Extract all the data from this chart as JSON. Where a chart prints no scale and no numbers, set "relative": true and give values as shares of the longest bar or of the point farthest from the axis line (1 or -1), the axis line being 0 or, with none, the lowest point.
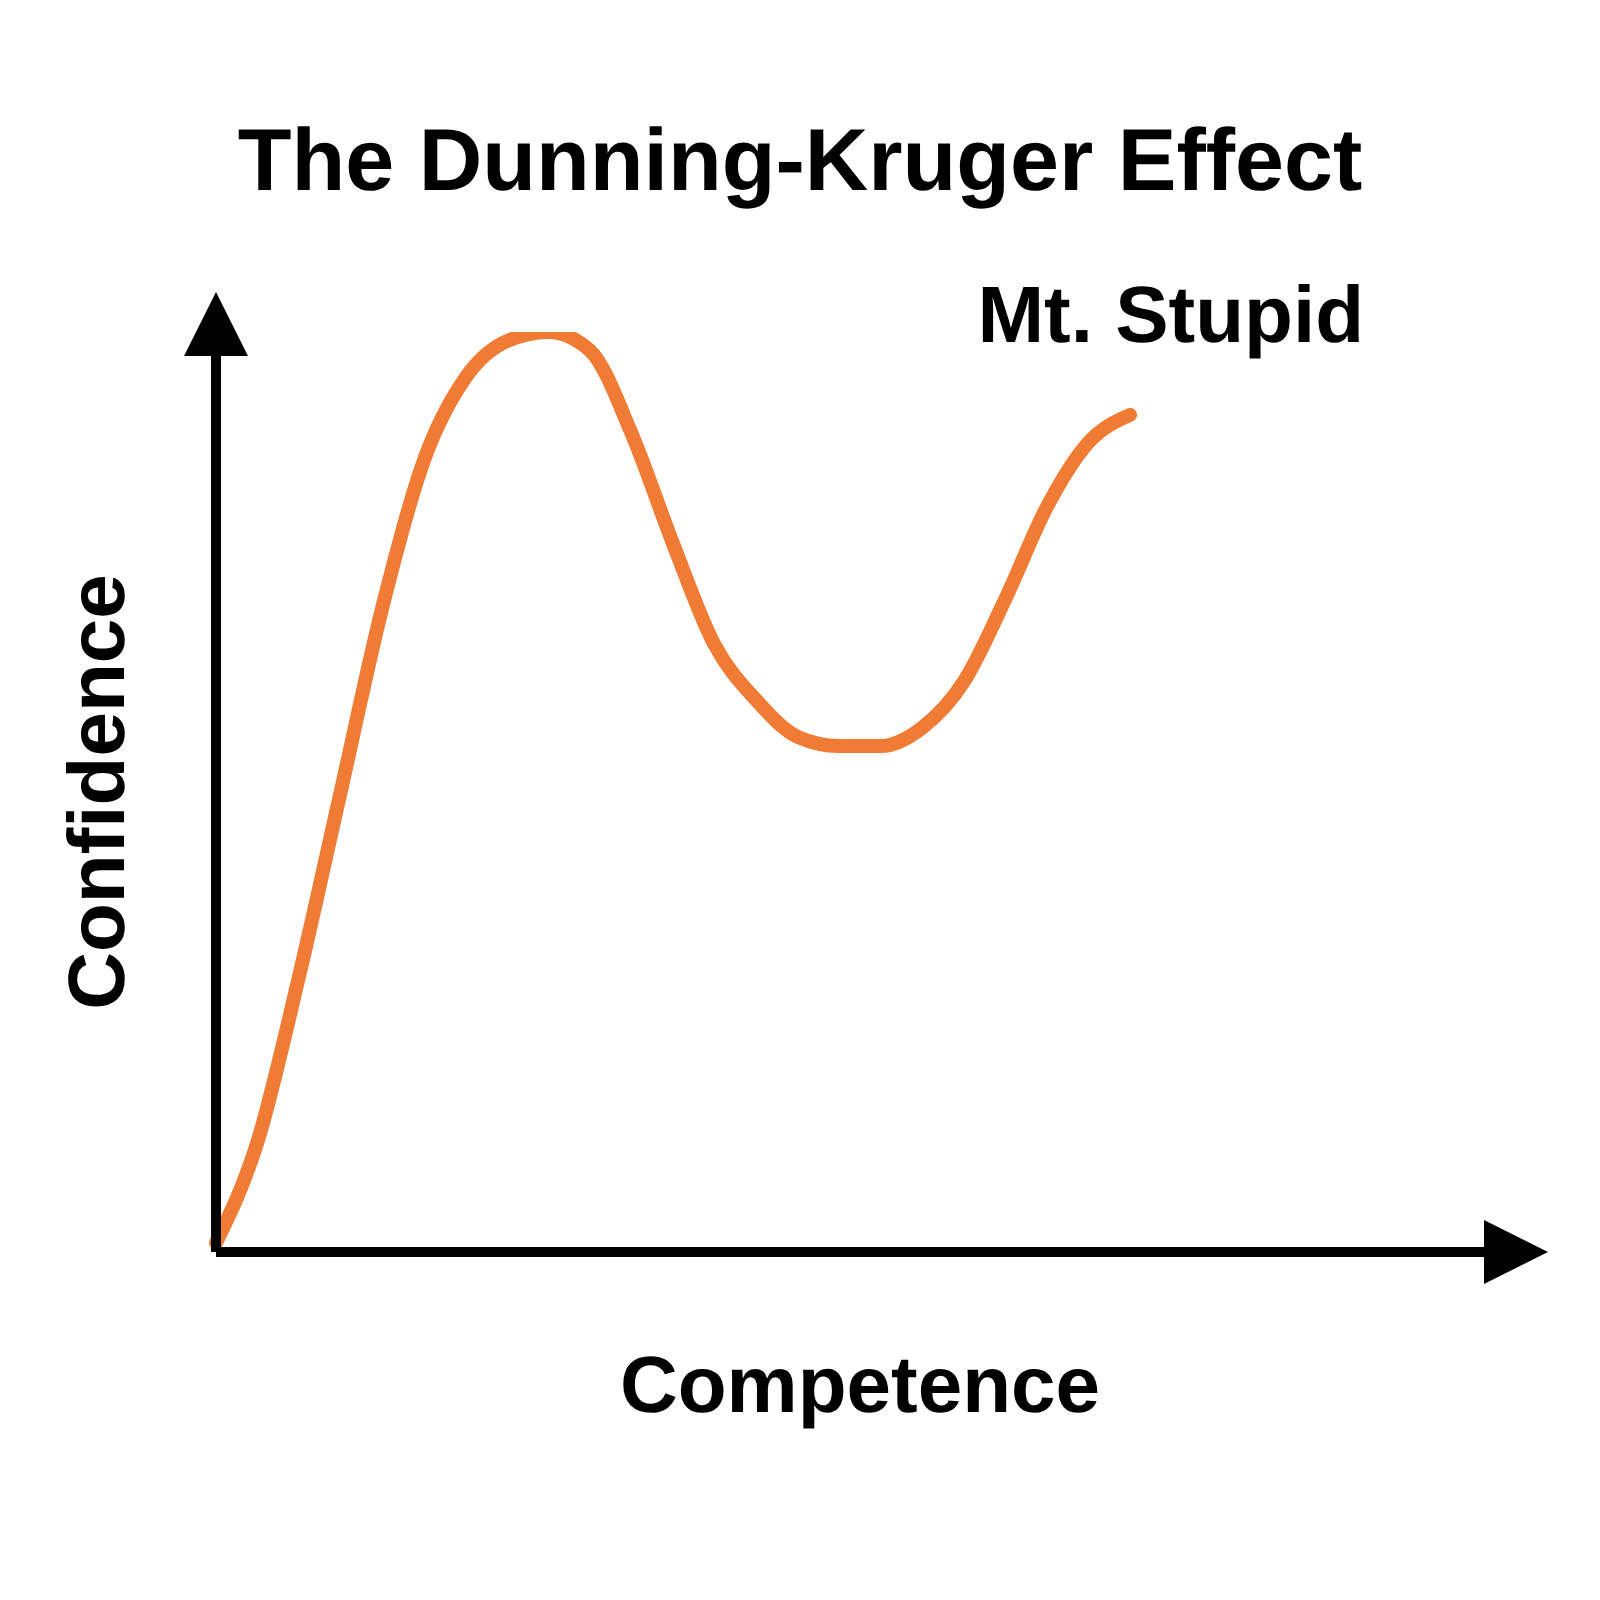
{
  "chart_data": {
    "type": "line",
    "title": "The Dunning-Kruger Effect",
    "xlabel": "Competence",
    "ylabel": "Confidence",
    "relative": true,
    "categories": [
      null,
      null,
      null,
      null,
      null,
      null,
      null,
      null,
      null,
      null,
      null,
      null,
      null,
      null,
      null,
      null,
      null,
      null,
      null,
      null,
      null,
      null,
      null,
      null,
      null,
      null,
      null,
      null,
      null,
      null,
      null,
      null
    ],
    "series": [
      {
        "color": "#f07b35",
        "values": [
          0.01,
          0.12,
          0.3,
          0.5,
          0.7,
          0.86,
          0.95,
          0.99,
          1,
          0.98,
          0.89,
          0.77,
          0.66,
          0.6,
          0.56,
          0.55,
          0.55,
          0.57,
          0.62,
          0.71,
          0.81,
          0.88,
          0.91,
          null,
          null,
          null,
          null,
          null,
          null,
          null,
          null,
          null
        ]
      }
    ],
    "annotations": [
      "Mt. Stupid"
    ]
  }
}
